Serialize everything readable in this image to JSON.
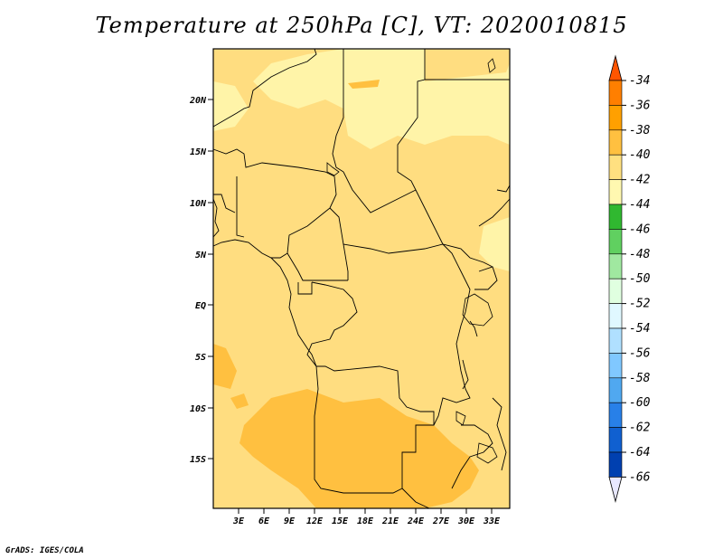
{
  "title": "Temperature at 250hPa [C], VT: 2020010815",
  "credit": "GrADS: IGES/COLA",
  "y_axis_labels": [
    "20N",
    "15N",
    "10N",
    "5N",
    "EQ",
    "5S",
    "10S",
    "15S"
  ],
  "x_axis_labels": [
    "3E",
    "6E",
    "9E",
    "12E",
    "15E",
    "18E",
    "21E",
    "24E",
    "27E",
    "30E",
    "33E"
  ],
  "colorbar": {
    "labels": [
      "-34",
      "-36",
      "-38",
      "-40",
      "-42",
      "-44",
      "-46",
      "-48",
      "-50",
      "-52",
      "-54",
      "-56",
      "-58",
      "-60",
      "-62",
      "-64",
      "-66"
    ],
    "colors": [
      "#ff5500",
      "#ff7f00",
      "#ffa000",
      "#ffc040",
      "#ffe080",
      "#fff8b0",
      "#30b830",
      "#60d060",
      "#a0e8a0",
      "#e0ffe0",
      "#e0f8ff",
      "#b0e0ff",
      "#80c8ff",
      "#50a8f0",
      "#2880e8",
      "#1060d0",
      "#0040b0",
      "#081050"
    ]
  },
  "palette": {
    "field_base": "#ffdd80",
    "field_warm": "#ffc040",
    "field_cool": "#fff4a8",
    "border": "#000000"
  }
}
